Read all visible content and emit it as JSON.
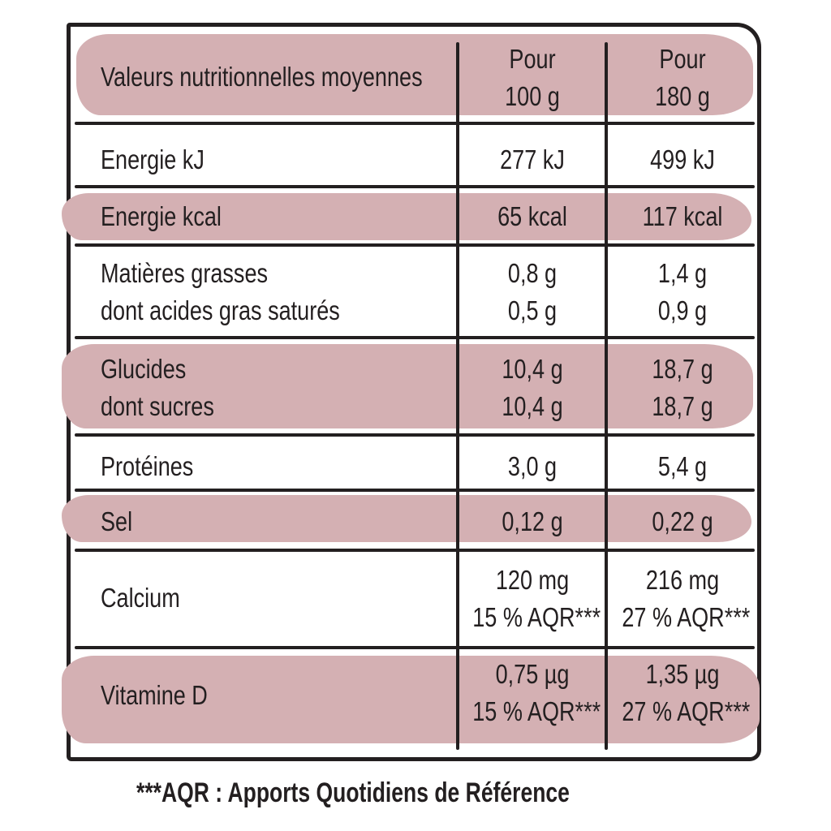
{
  "table": {
    "header": {
      "label": "Valeurs nutritionnelles moyennes",
      "col1": [
        "Pour",
        "100 g"
      ],
      "col2": [
        "Pour",
        "180 g"
      ]
    },
    "rows": [
      {
        "label": [
          "Energie kJ"
        ],
        "col1": [
          "277 kJ"
        ],
        "col2": [
          "499 kJ"
        ]
      },
      {
        "label": [
          "Energie kcal"
        ],
        "col1": [
          "65 kcal"
        ],
        "col2": [
          "117 kcal"
        ]
      },
      {
        "label": [
          "Matières grasses",
          "dont acides gras saturés"
        ],
        "col1": [
          "0,8 g",
          "0,5 g"
        ],
        "col2": [
          "1,4 g",
          "0,9 g"
        ]
      },
      {
        "label": [
          "Glucides",
          "dont sucres"
        ],
        "col1": [
          "10,4 g",
          "10,4 g"
        ],
        "col2": [
          "18,7 g",
          "18,7 g"
        ]
      },
      {
        "label": [
          "Protéines"
        ],
        "col1": [
          "3,0 g"
        ],
        "col2": [
          "5,4 g"
        ]
      },
      {
        "label": [
          "Sel"
        ],
        "col1": [
          "0,12 g"
        ],
        "col2": [
          "0,22 g"
        ]
      },
      {
        "label": [
          "Calcium"
        ],
        "col1": [
          "120 mg",
          "15 % AQR***"
        ],
        "col2": [
          "216 mg",
          "27 % AQR***"
        ]
      },
      {
        "label": [
          "Vitamine D"
        ],
        "col1": [
          "0,75 µg",
          "15 % AQR***"
        ],
        "col2": [
          "1,35 µg",
          "27 % AQR***"
        ]
      }
    ]
  },
  "footnote": "***AQR : Apports Quotidiens de Référence",
  "colors": {
    "band": "#d4b0b3",
    "ink": "#231f20",
    "background": "#ffffff"
  }
}
